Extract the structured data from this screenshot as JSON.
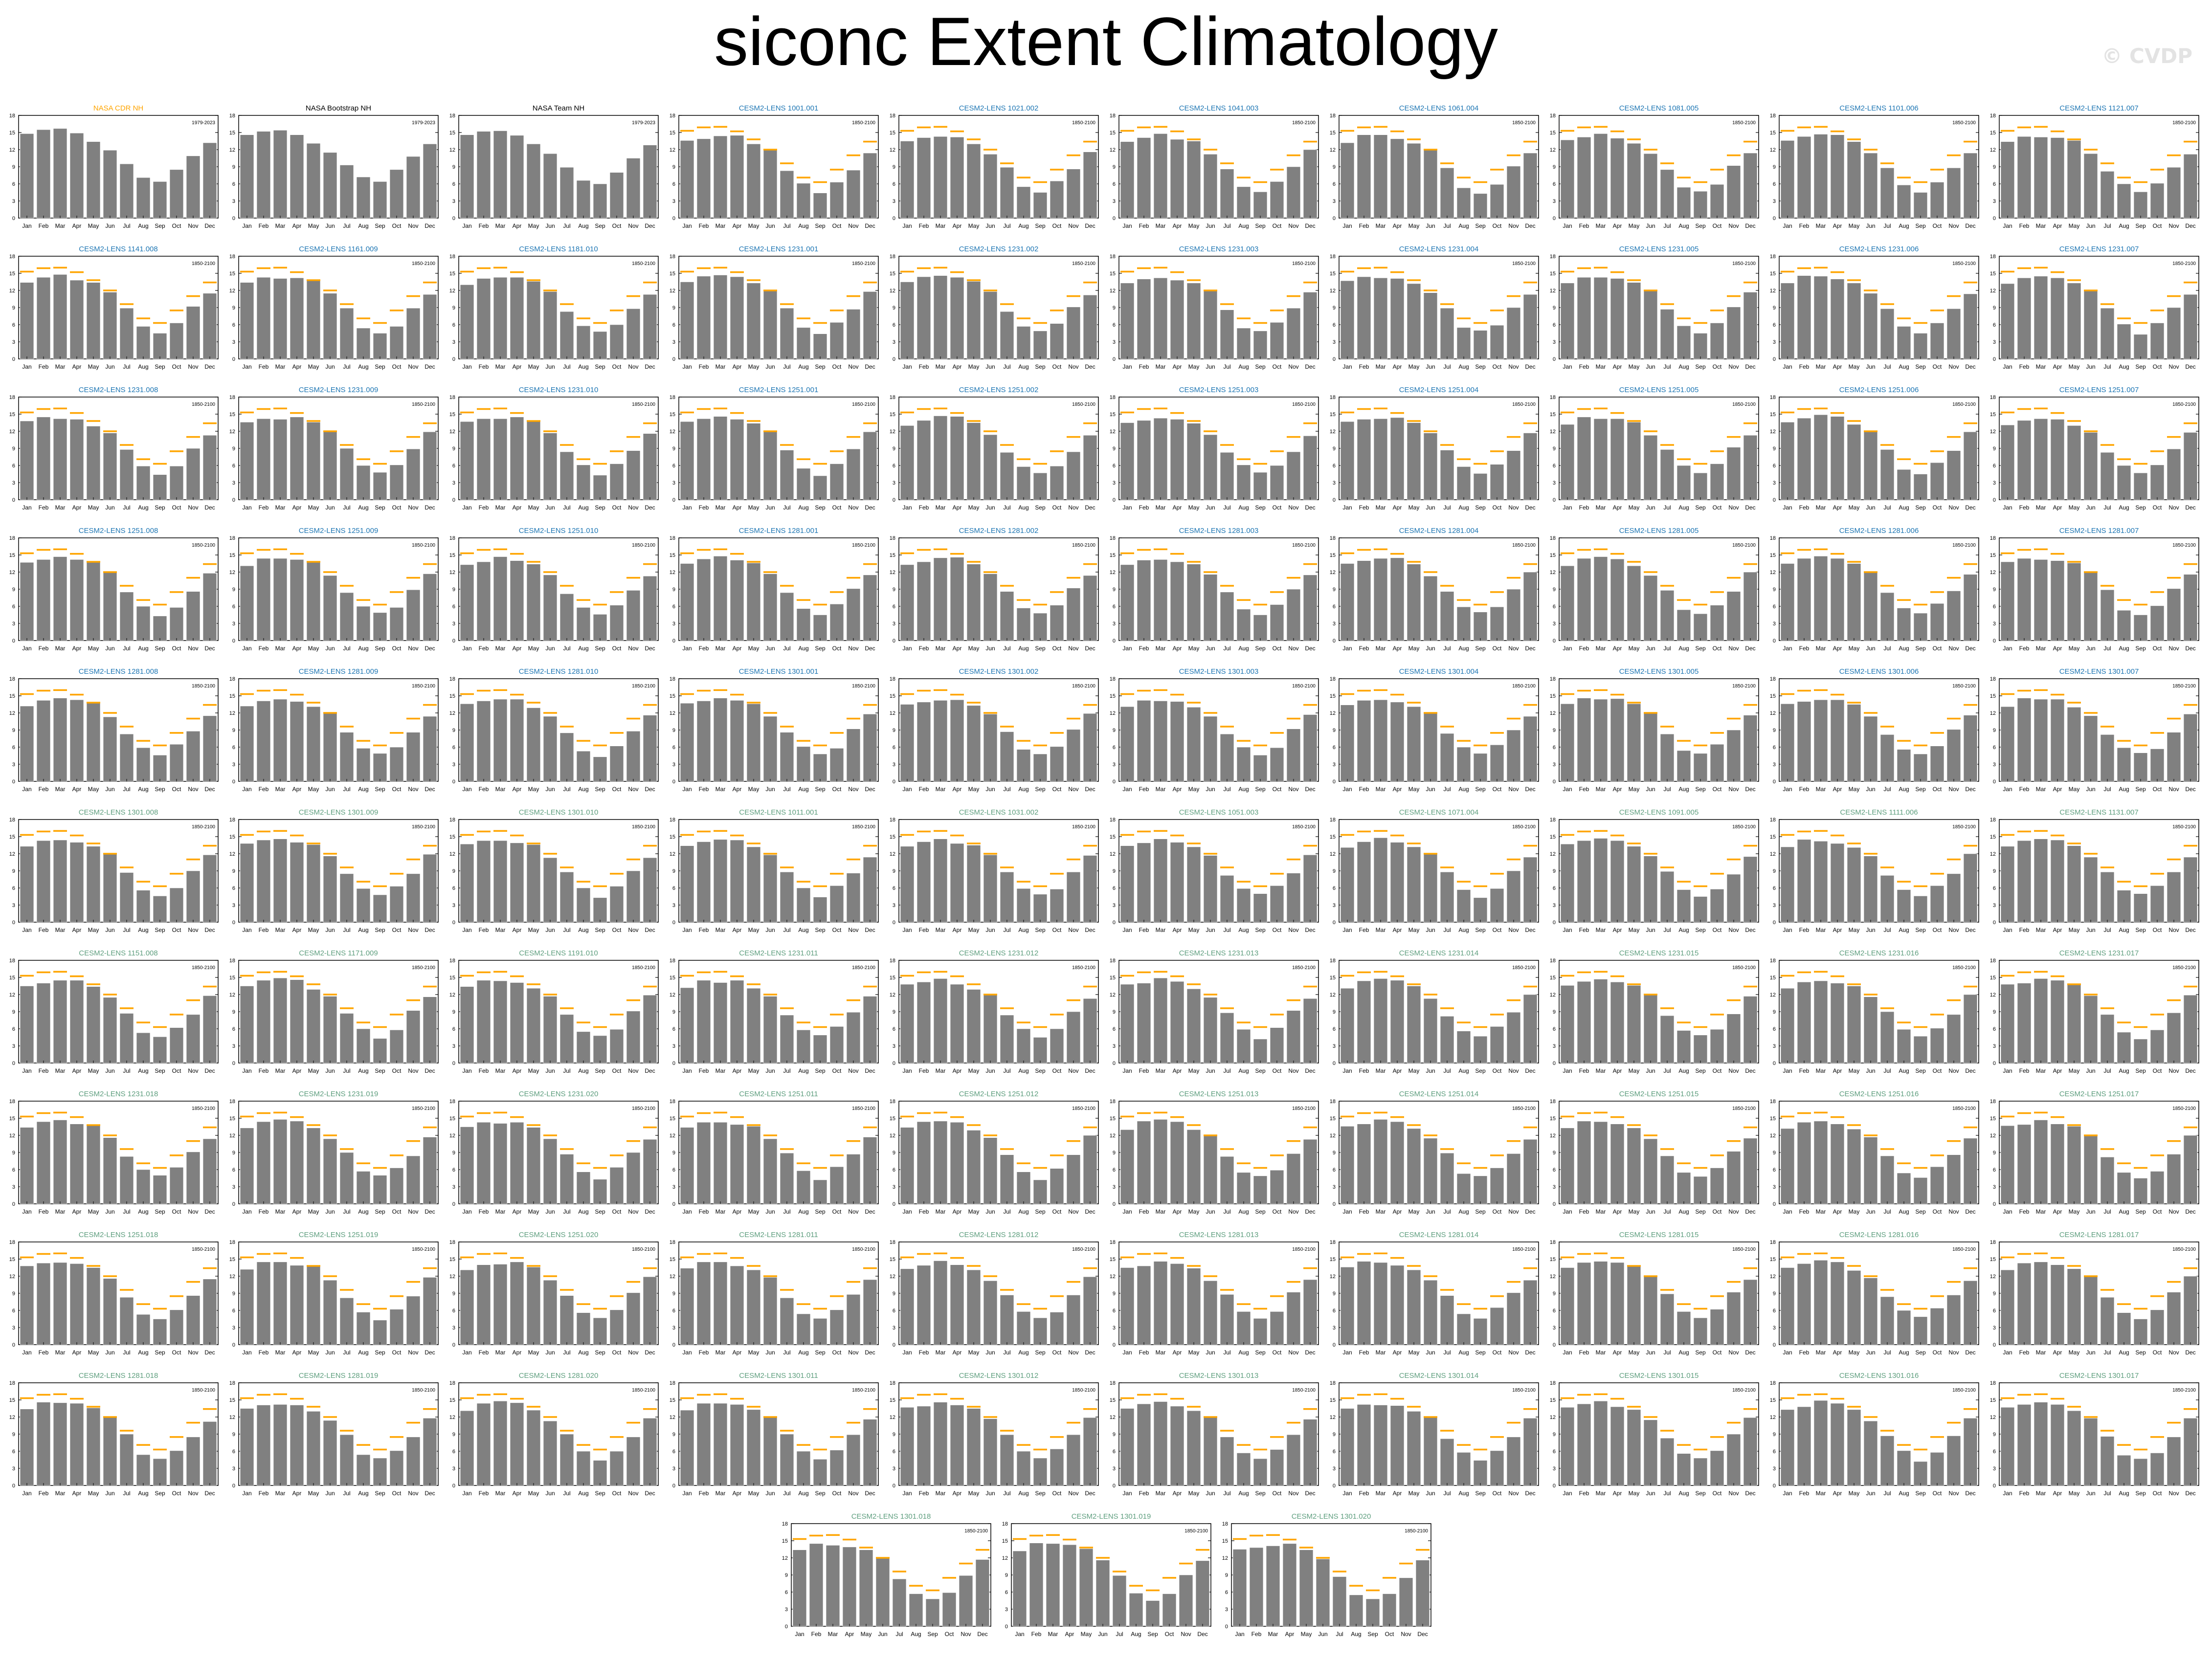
{
  "title": "siconc Extent Climatology",
  "watermark": "© CVDP",
  "colors": {
    "bar": "#808080",
    "obs_line": "#ffa500",
    "title_obs_cdr": "#ffa500",
    "title_obs_other": "#000000",
    "title_member_group1": "#1f77b4",
    "title_member_group2": "#5f9f7f"
  },
  "chart_data": {
    "type": "bar",
    "months": [
      "Jan",
      "Feb",
      "Mar",
      "Apr",
      "May",
      "Jun",
      "Jul",
      "Aug",
      "Sep",
      "Oct",
      "Nov",
      "Dec"
    ],
    "y_ticks": [
      0,
      3,
      6,
      9,
      12,
      15,
      18
    ],
    "ylim": [
      0,
      18
    ],
    "obs_reference": [
      15.3,
      15.9,
      16.0,
      15.2,
      13.8,
      12.0,
      9.6,
      7.1,
      6.3,
      8.5,
      11.0,
      13.4
    ],
    "obs_period": "1979-2023",
    "model_period": "1850-2100",
    "observations": [
      {
        "name": "NASA CDR NH",
        "values": [
          14.8,
          15.5,
          15.7,
          14.9,
          13.4,
          11.9,
          9.5,
          7.1,
          6.4,
          8.5,
          10.9,
          13.2
        ]
      },
      {
        "name": "NASA Bootstrap NH",
        "values": [
          14.6,
          15.2,
          15.4,
          14.6,
          13.1,
          11.5,
          9.3,
          7.2,
          6.4,
          8.5,
          10.8,
          13.0
        ]
      },
      {
        "name": "NASA Team NH",
        "values": [
          14.6,
          15.2,
          15.3,
          14.5,
          13.0,
          11.3,
          8.9,
          6.6,
          6.0,
          8.0,
          10.5,
          12.8
        ]
      }
    ],
    "member_template": [
      13.4,
      14.2,
      14.5,
      14.2,
      13.3,
      11.6,
      8.6,
      5.7,
      4.6,
      6.1,
      8.8,
      11.6
    ],
    "members": [
      "CESM2-LENS 1001.001",
      "CESM2-LENS 1021.002",
      "CESM2-LENS 1041.003",
      "CESM2-LENS 1061.004",
      "CESM2-LENS 1081.005",
      "CESM2-LENS 1101.006",
      "CESM2-LENS 1121.007",
      "CESM2-LENS 1141.008",
      "CESM2-LENS 1161.009",
      "CESM2-LENS 1181.010",
      "CESM2-LENS 1231.001",
      "CESM2-LENS 1231.002",
      "CESM2-LENS 1231.003",
      "CESM2-LENS 1231.004",
      "CESM2-LENS 1231.005",
      "CESM2-LENS 1231.006",
      "CESM2-LENS 1231.007",
      "CESM2-LENS 1231.008",
      "CESM2-LENS 1231.009",
      "CESM2-LENS 1231.010",
      "CESM2-LENS 1251.001",
      "CESM2-LENS 1251.002",
      "CESM2-LENS 1251.003",
      "CESM2-LENS 1251.004",
      "CESM2-LENS 1251.005",
      "CESM2-LENS 1251.006",
      "CESM2-LENS 1251.007",
      "CESM2-LENS 1251.008",
      "CESM2-LENS 1251.009",
      "CESM2-LENS 1251.010",
      "CESM2-LENS 1281.001",
      "CESM2-LENS 1281.002",
      "CESM2-LENS 1281.003",
      "CESM2-LENS 1281.004",
      "CESM2-LENS 1281.005",
      "CESM2-LENS 1281.006",
      "CESM2-LENS 1281.007",
      "CESM2-LENS 1281.008",
      "CESM2-LENS 1281.009",
      "CESM2-LENS 1281.010",
      "CESM2-LENS 1301.001",
      "CESM2-LENS 1301.002",
      "CESM2-LENS 1301.003",
      "CESM2-LENS 1301.004",
      "CESM2-LENS 1301.005",
      "CESM2-LENS 1301.006",
      "CESM2-LENS 1301.007",
      "CESM2-LENS 1301.008",
      "CESM2-LENS 1301.009",
      "CESM2-LENS 1301.010",
      "CESM2-LENS 1011.001",
      "CESM2-LENS 1031.002",
      "CESM2-LENS 1051.003",
      "CESM2-LENS 1071.004",
      "CESM2-LENS 1091.005",
      "CESM2-LENS 1111.006",
      "CESM2-LENS 1131.007",
      "CESM2-LENS 1151.008",
      "CESM2-LENS 1171.009",
      "CESM2-LENS 1191.010",
      "CESM2-LENS 1231.011",
      "CESM2-LENS 1231.012",
      "CESM2-LENS 1231.013",
      "CESM2-LENS 1231.014",
      "CESM2-LENS 1231.015",
      "CESM2-LENS 1231.016",
      "CESM2-LENS 1231.017",
      "CESM2-LENS 1231.018",
      "CESM2-LENS 1231.019",
      "CESM2-LENS 1231.020",
      "CESM2-LENS 1251.011",
      "CESM2-LENS 1251.012",
      "CESM2-LENS 1251.013",
      "CESM2-LENS 1251.014",
      "CESM2-LENS 1251.015",
      "CESM2-LENS 1251.016",
      "CESM2-LENS 1251.017",
      "CESM2-LENS 1251.018",
      "CESM2-LENS 1251.019",
      "CESM2-LENS 1251.020",
      "CESM2-LENS 1281.011",
      "CESM2-LENS 1281.012",
      "CESM2-LENS 1281.013",
      "CESM2-LENS 1281.014",
      "CESM2-LENS 1281.015",
      "CESM2-LENS 1281.016",
      "CESM2-LENS 1281.017",
      "CESM2-LENS 1281.018",
      "CESM2-LENS 1281.019",
      "CESM2-LENS 1281.020",
      "CESM2-LENS 1301.011",
      "CESM2-LENS 1301.012",
      "CESM2-LENS 1301.013",
      "CESM2-LENS 1301.014",
      "CESM2-LENS 1301.015",
      "CESM2-LENS 1301.016",
      "CESM2-LENS 1301.017",
      "CESM2-LENS 1301.018",
      "CESM2-LENS 1301.019",
      "CESM2-LENS 1301.020"
    ]
  }
}
